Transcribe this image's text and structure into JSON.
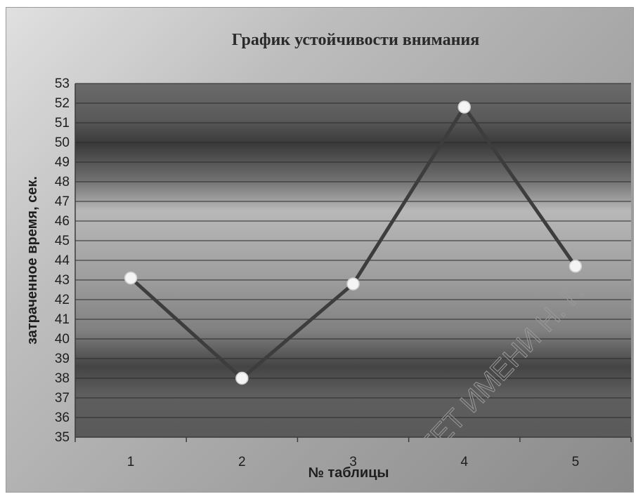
{
  "chart_data": {
    "type": "line",
    "title": "График устойчивости внимания",
    "xlabel": "№ таблицы",
    "ylabel": "затраченное время, сек.",
    "categories": [
      "1",
      "2",
      "3",
      "4",
      "5"
    ],
    "series": [
      {
        "values": [
          43.1,
          38.0,
          42.8,
          51.8,
          43.7
        ]
      }
    ],
    "ylim": [
      35,
      53
    ],
    "yticks": [
      35,
      36,
      37,
      38,
      39,
      40,
      41,
      42,
      43,
      44,
      45,
      46,
      47,
      48,
      49,
      50,
      51,
      52,
      53
    ],
    "grid": true,
    "legend": "none",
    "colors": {
      "line": "#3d3d3d",
      "marker": "#f4f4f4",
      "text": "#1e1e1e"
    }
  },
  "watermark": "СИТЕТ ИМЕНИ Н. Г."
}
